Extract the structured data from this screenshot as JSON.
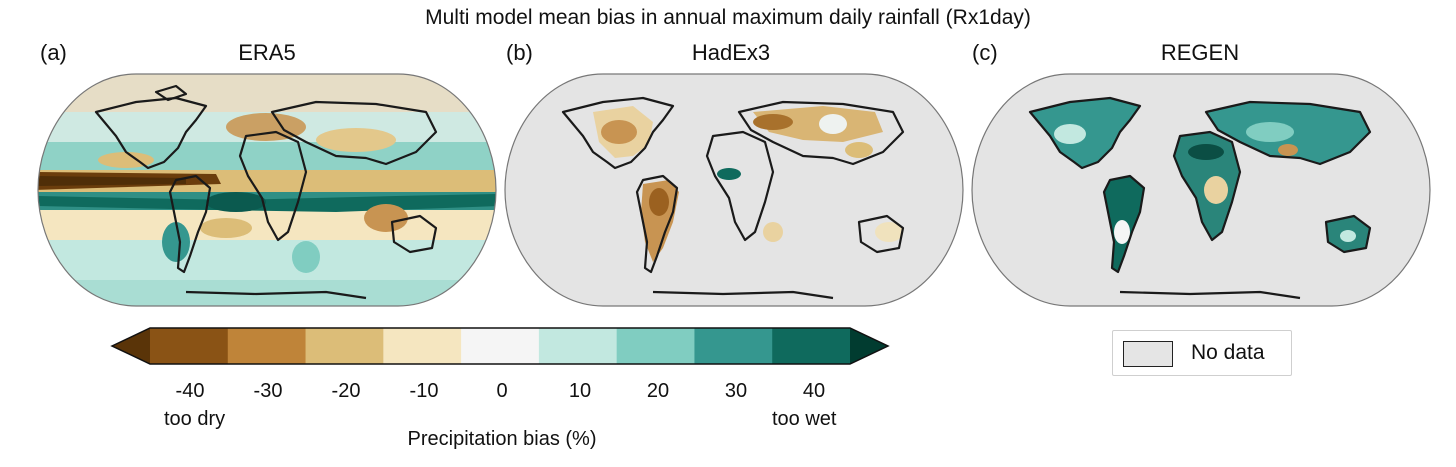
{
  "figure": {
    "title": "Multi model mean bias in annual maximum daily rainfall (Rx1day)"
  },
  "panels": [
    {
      "letter": "(a)",
      "title": "ERA5"
    },
    {
      "letter": "(b)",
      "title": "HadEx3"
    },
    {
      "letter": "(c)",
      "title": "REGEN"
    }
  ],
  "colorbar": {
    "ticks": [
      "-40",
      "-30",
      "-20",
      "-10",
      "0",
      "10",
      "20",
      "30",
      "40"
    ],
    "tick_values": [
      -40,
      -30,
      -20,
      -10,
      0,
      10,
      20,
      30,
      40
    ],
    "colors": [
      "#8a5315",
      "#bf8439",
      "#dcbd78",
      "#f5e6c0",
      "#f5f5f5",
      "#c2e8e0",
      "#80cdc1",
      "#35978f",
      "#0f6a5d"
    ],
    "under_color": "#5a3408",
    "over_color": "#013c30",
    "left_end_label": "too dry",
    "right_end_label": "too wet",
    "label": "Precipitation bias (%)"
  },
  "legend": {
    "label": "No data",
    "swatch_color": "#e5e5e5"
  },
  "map_colors": {
    "nodata": "#e4e4e4",
    "coast": "#1a1a1a",
    "ocean_base": "#f3f3f3"
  }
}
